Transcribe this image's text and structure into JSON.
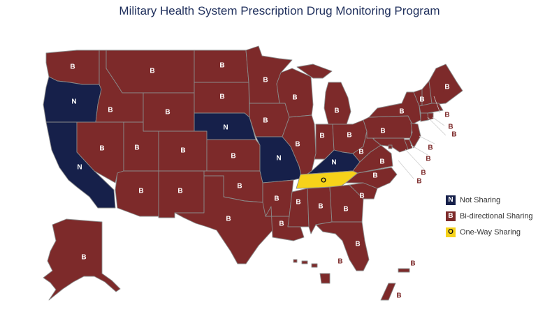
{
  "title": "Military Health System Prescription Drug Monitoring Program",
  "categories": {
    "N": {
      "color": "#16204a",
      "text_color": "#ffffff"
    },
    "B": {
      "color": "#7d2a2a",
      "text_color": "#ffffff"
    },
    "O": {
      "color": "#f6d21a",
      "text_color": "#111111"
    }
  },
  "legend": [
    {
      "code": "N",
      "label": "Not Sharing"
    },
    {
      "code": "B",
      "label": "Bi-directional Sharing"
    },
    {
      "code": "O",
      "label": "One-Way Sharing"
    }
  ],
  "states": [
    {
      "id": "WA",
      "code": "B"
    },
    {
      "id": "OR",
      "code": "N"
    },
    {
      "id": "CA",
      "code": "N"
    },
    {
      "id": "ID",
      "code": "B"
    },
    {
      "id": "NV",
      "code": "B"
    },
    {
      "id": "MT",
      "code": "B"
    },
    {
      "id": "WY",
      "code": "B"
    },
    {
      "id": "UT",
      "code": "B"
    },
    {
      "id": "AZ",
      "code": "B"
    },
    {
      "id": "CO",
      "code": "B"
    },
    {
      "id": "NM",
      "code": "B"
    },
    {
      "id": "ND",
      "code": "B"
    },
    {
      "id": "SD",
      "code": "B"
    },
    {
      "id": "NE",
      "code": "N"
    },
    {
      "id": "KS",
      "code": "B"
    },
    {
      "id": "OK",
      "code": "B"
    },
    {
      "id": "TX",
      "code": "B"
    },
    {
      "id": "MN",
      "code": "B"
    },
    {
      "id": "IA",
      "code": "B"
    },
    {
      "id": "MO",
      "code": "N"
    },
    {
      "id": "AR",
      "code": "B"
    },
    {
      "id": "LA",
      "code": "B"
    },
    {
      "id": "WI",
      "code": "B"
    },
    {
      "id": "IL",
      "code": "B"
    },
    {
      "id": "MI",
      "code": "B"
    },
    {
      "id": "IN",
      "code": "B"
    },
    {
      "id": "OH",
      "code": "B"
    },
    {
      "id": "KY",
      "code": "N"
    },
    {
      "id": "TN",
      "code": "O"
    },
    {
      "id": "MS",
      "code": "B"
    },
    {
      "id": "AL",
      "code": "B"
    },
    {
      "id": "GA",
      "code": "B"
    },
    {
      "id": "FL",
      "code": "B"
    },
    {
      "id": "SC",
      "code": "B"
    },
    {
      "id": "NC",
      "code": "B"
    },
    {
      "id": "VA",
      "code": "B"
    },
    {
      "id": "WV",
      "code": "B"
    },
    {
      "id": "PA",
      "code": "B"
    },
    {
      "id": "NY",
      "code": "B"
    },
    {
      "id": "VT",
      "code": "B"
    },
    {
      "id": "NH",
      "code": "B"
    },
    {
      "id": "ME",
      "code": "B"
    },
    {
      "id": "MA",
      "code": "B"
    },
    {
      "id": "RI",
      "code": "B"
    },
    {
      "id": "CT",
      "code": "B"
    },
    {
      "id": "NJ",
      "code": "B"
    },
    {
      "id": "DE",
      "code": "B"
    },
    {
      "id": "MD",
      "code": "B"
    },
    {
      "id": "DC",
      "code": "B"
    },
    {
      "id": "AK",
      "code": "B"
    },
    {
      "id": "HI",
      "code": "B"
    },
    {
      "id": "PR",
      "code": "B"
    },
    {
      "id": "VI",
      "code": "B"
    }
  ]
}
